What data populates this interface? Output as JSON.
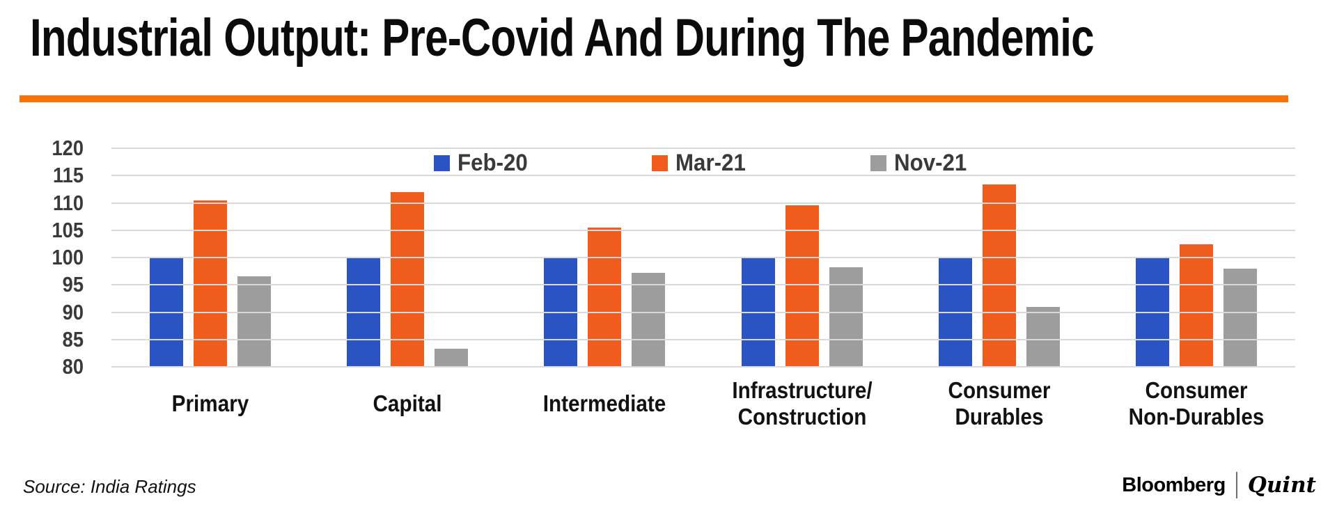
{
  "title": "Industrial Output: Pre-Covid And During The Pandemic",
  "colors": {
    "accent_rule": "#F87409",
    "gridline": "#D9D9D9",
    "axis_text": "#3A3A3A",
    "series": {
      "feb20": "#2A54C4",
      "mar21": "#F05C1B",
      "nov21": "#9D9D9D"
    }
  },
  "chart_data": {
    "type": "bar",
    "title": "Industrial Output: Pre-Covid And During The Pandemic",
    "categories": [
      "Primary",
      "Capital",
      "Intermediate",
      "Infrastructure/\nConstruction",
      "Consumer\nDurables",
      "Consumer\nNon-Durables"
    ],
    "series": [
      {
        "name": "Feb-20",
        "color": "#2A54C4",
        "values": [
          100,
          100,
          100,
          100,
          100,
          100
        ]
      },
      {
        "name": "Mar-21",
        "color": "#F05C1B",
        "values": [
          110.5,
          112,
          105.5,
          109.5,
          113.4,
          102.4
        ]
      },
      {
        "name": "Nov-21",
        "color": "#9D9D9D",
        "values": [
          96.5,
          83.3,
          97.2,
          98.2,
          91,
          98
        ]
      }
    ],
    "xlabel": "",
    "ylabel": "",
    "ylim": [
      80,
      120
    ],
    "yticks": [
      80,
      85,
      90,
      95,
      100,
      105,
      110,
      115,
      120
    ],
    "grid": true,
    "legend_position": "top-center"
  },
  "footer": {
    "source": "Source: India Ratings",
    "brand_left": "Bloomberg",
    "brand_right": "Quint"
  }
}
